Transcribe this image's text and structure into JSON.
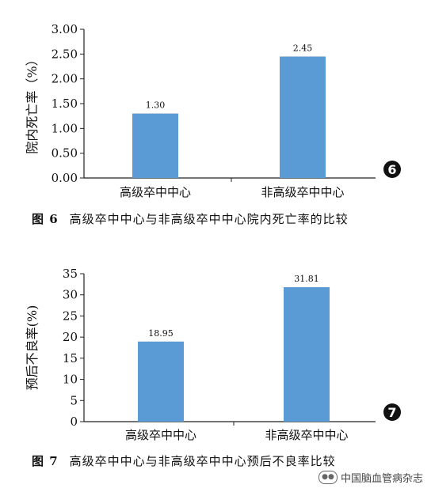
{
  "chart_data": [
    {
      "type": "bar",
      "categories": [
        "高级卒中中心",
        "非高级卒中中心"
      ],
      "values": [
        1.3,
        2.45
      ],
      "value_labels": [
        "1.30",
        "2.45"
      ],
      "ylabel": "院内死亡率（%）",
      "ylim": [
        0,
        3.0
      ],
      "yticks": [
        "0.00",
        "0.50",
        "1.00",
        "1.50",
        "2.00",
        "2.50",
        "3.00"
      ],
      "marker": "6",
      "bar_color": "#5b9bd5",
      "grid": false
    },
    {
      "type": "bar",
      "categories": [
        "高级卒中中心",
        "非高级卒中中心"
      ],
      "values": [
        18.95,
        31.81
      ],
      "value_labels": [
        "18.95",
        "31.81"
      ],
      "ylabel": "预后不良率(%)",
      "ylim": [
        0,
        35
      ],
      "yticks": [
        "0",
        "5",
        "10",
        "15",
        "20",
        "25",
        "30",
        "35"
      ],
      "marker": "7",
      "bar_color": "#5b9bd5",
      "grid": false
    }
  ],
  "captions": [
    {
      "label": "图 6",
      "text": "高级卒中中心与非高级卒中中心院内死亡率的比较"
    },
    {
      "label": "图 7",
      "text": "高级卒中中心与非高级卒中中心预后不良率比较"
    }
  ],
  "watermark": {
    "text": "中国脑血管病杂志",
    "icon": "wechat-icon"
  }
}
